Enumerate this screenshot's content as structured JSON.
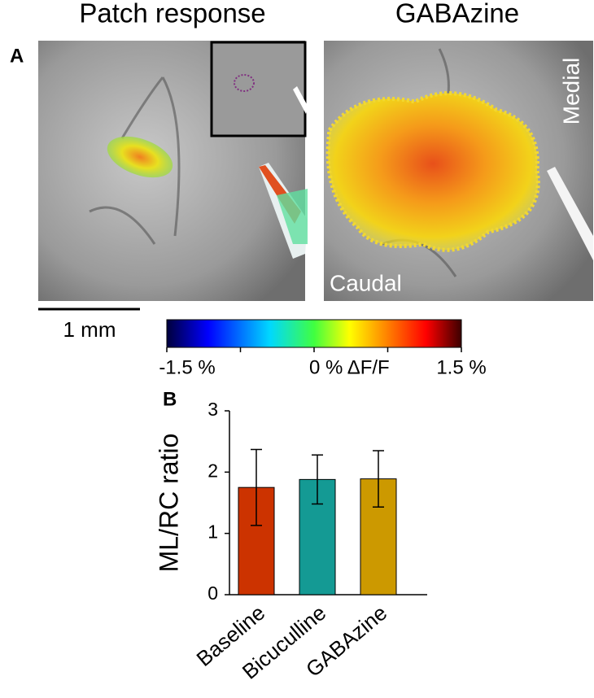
{
  "panel_a": {
    "label": "A",
    "titles": [
      "Patch response",
      "GABAzine"
    ],
    "orientation_labels": [
      "Medial",
      "Caudal"
    ],
    "scale_bar": "1 mm",
    "colorbar": {
      "lim": [
        -1.5,
        1.5
      ],
      "ticks": [
        {
          "value": -1.5,
          "label": "-1.5 %"
        },
        {
          "value": 0,
          "label": "0 % ΔF/F"
        },
        {
          "value": 1.5,
          "label": "1.5 %"
        }
      ],
      "minor_ticks": [
        -0.75,
        0.75
      ]
    }
  },
  "chart_data": {
    "type": "bar",
    "panel_label": "B",
    "ylabel": "ML/RC ratio",
    "categories": [
      "Baseline",
      "Bicuculline",
      "GABAzine"
    ],
    "values": [
      1.75,
      1.88,
      1.89
    ],
    "errors": [
      0.62,
      0.4,
      0.46
    ],
    "colors": [
      "#cc3300",
      "#149a94",
      "#cc9900"
    ],
    "ylim": [
      0,
      3
    ],
    "yticks": [
      0,
      1,
      2,
      3
    ]
  }
}
